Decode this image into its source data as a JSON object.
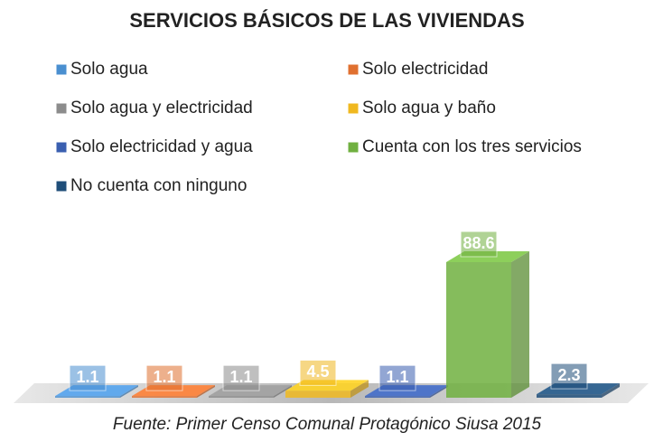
{
  "chart_data": {
    "type": "bar",
    "title": "SERVICIOS BÁSICOS DE LAS VIVIENDAS",
    "categories": [
      "Solo agua",
      "Solo electricidad",
      "Solo agua y electricidad",
      "Solo agua y baño",
      "Solo electricidad y agua",
      "Cuenta con los tres servicios",
      "No cuenta con ninguno"
    ],
    "values": [
      1.1,
      1.1,
      1.1,
      4.5,
      1.1,
      88.6,
      2.3
    ],
    "colors": [
      "#4a8fd0",
      "#e07030",
      "#8c8c8c",
      "#f0b820",
      "#3a5fb0",
      "#70b040",
      "#1f4e79"
    ],
    "source": "Fuente: Primer Censo Comunal Protagónico Siusa 2015"
  }
}
